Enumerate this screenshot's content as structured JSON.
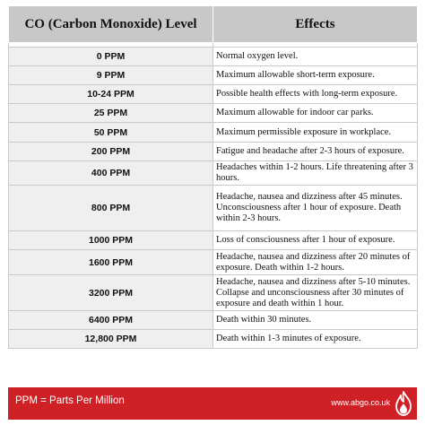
{
  "header": {
    "level_title": "CO (Carbon Monoxide) Level",
    "effects_title": "Effects"
  },
  "rows": [
    {
      "level": "0 PPM",
      "effect": "Normal oxygen level."
    },
    {
      "level": "9 PPM",
      "effect": "Maximum allowable short-term exposure."
    },
    {
      "level": "10-24 PPM",
      "effect": "Possible health effects with long-term exposure."
    },
    {
      "level": "25 PPM",
      "effect": "Maximum allowable for indoor car parks."
    },
    {
      "level": "50 PPM",
      "effect": "Maximum permissible exposure in workplace."
    },
    {
      "level": "200 PPM",
      "effect": "Fatigue and headache after 2-3 hours of exposure."
    },
    {
      "level": "400 PPM",
      "effect": "Headaches within 1-2 hours. Life threatening after 3 hours."
    },
    {
      "level": "800 PPM",
      "effect": "Headache, nausea and dizziness after 45 minutes. Unconsciousness after 1 hour of exposure. Death within 2-3 hours."
    },
    {
      "level": "1000 PPM",
      "effect": "Loss of consciousness after 1 hour of exposure."
    },
    {
      "level": "1600 PPM",
      "effect": "Headache, nausea and dizziness after 20 minutes of exposure. Death within 1-2 hours."
    },
    {
      "level": "3200 PPM",
      "effect": "Headache, nausea and dizziness after 5-10 minutes. Collapse and unconsciousness after 30 minutes of exposure and death within 1 hour."
    },
    {
      "level": "6400 PPM",
      "effect": "Death within 30 minutes."
    },
    {
      "level": "12,800 PPM",
      "effect": "Death within 1-3 minutes of exposure."
    }
  ],
  "footer": {
    "legend": "PPM = Parts Per Million",
    "website": "www.abgo.co.uk",
    "logo_icon": "flame-icon"
  },
  "colors": {
    "header_bg": "#c8c8c8",
    "level_cell_bg": "#efefef",
    "footer_bg": "#cf2026"
  }
}
